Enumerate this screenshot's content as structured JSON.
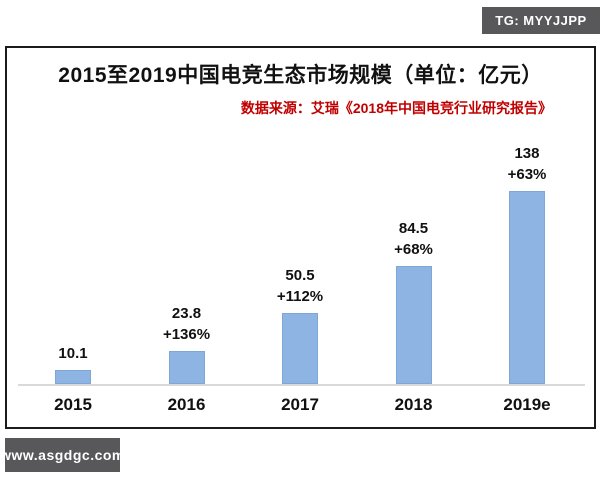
{
  "watermarks": {
    "top_right": "TG: MYYJJPP",
    "bottom_left": "www.asgdgc.com",
    "badge_bg": "#58585a"
  },
  "chart_data": {
    "type": "bar",
    "title": "2015至2019中国电竞生态市场规模（单位：亿元）",
    "source_note": "数据来源：艾瑞《2018年中国电竞行业研究报告》",
    "categories": [
      "2015",
      "2016",
      "2017",
      "2018",
      "2019e"
    ],
    "values": [
      10.1,
      23.8,
      50.5,
      84.5,
      138
    ],
    "data_labels": [
      "10.1",
      "23.8",
      "50.5",
      "84.5",
      "138"
    ],
    "growth_labels": [
      "",
      "+136%",
      "+112%",
      "+68%",
      "+63%"
    ],
    "xlabel": "",
    "ylabel": "",
    "ylim": [
      0,
      150
    ],
    "grid": false,
    "legend": "none",
    "colors": {
      "bar_fill": "#8eb4e3",
      "bar_border": "#7da7d8",
      "axis_line": "#d9d9d9",
      "title_text": "#111111",
      "source_text": "#c00000"
    }
  }
}
